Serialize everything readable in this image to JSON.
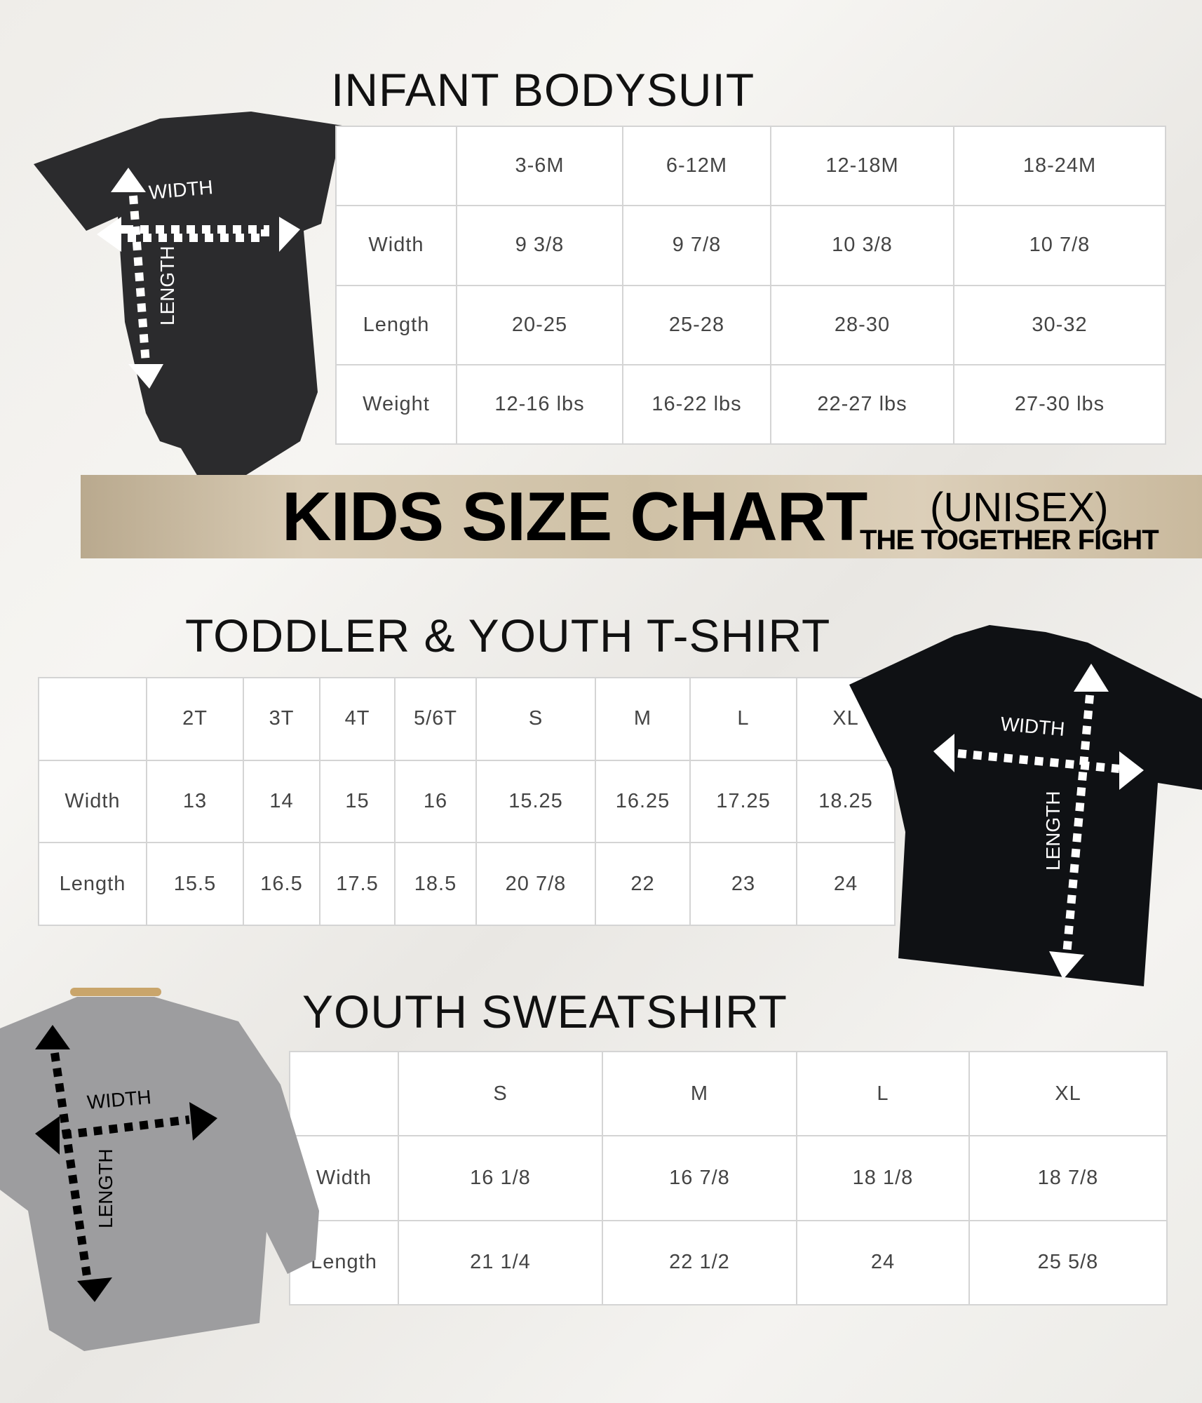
{
  "infant": {
    "title": "INFANT BODYSUIT",
    "headers": [
      "",
      "3-6M",
      "6-12M",
      "12-18M",
      "18-24M"
    ],
    "rows": [
      [
        "Width",
        "9 3/8",
        "9 7/8",
        "10 3/8",
        "10 7/8"
      ],
      [
        "Length",
        "20-25",
        "25-28",
        "28-30",
        "30-32"
      ],
      [
        "Weight",
        "12-16 lbs",
        "16-22 lbs",
        "22-27 lbs",
        "27-30 lbs"
      ]
    ],
    "garment_labels": {
      "width": "WIDTH",
      "length": "LENGTH"
    },
    "garment_color": "#2b2b2d"
  },
  "banner": {
    "title": "KIDS SIZE CHART",
    "subtitle": "(UNISEX)",
    "brand": "THE TOGETHER FIGHT"
  },
  "toddler": {
    "title": "TODDLER & YOUTH T-SHIRT",
    "headers": [
      "",
      "2T",
      "3T",
      "4T",
      "5/6T",
      "S",
      "M",
      "L",
      "XL"
    ],
    "rows": [
      [
        "Width",
        "13",
        "14",
        "15",
        "16",
        "15.25",
        "16.25",
        "17.25",
        "18.25"
      ],
      [
        "Length",
        "15.5",
        "16.5",
        "17.5",
        "18.5",
        "20 7/8",
        "22",
        "23",
        "24"
      ]
    ],
    "garment_labels": {
      "width": "WIDTH",
      "length": "LENGTH"
    },
    "garment_color": "#0f1114"
  },
  "sweatshirt": {
    "title": "YOUTH SWEATSHIRT",
    "headers": [
      "",
      "S",
      "M",
      "L",
      "XL"
    ],
    "rows": [
      [
        "Width",
        "16 1/8",
        "16 7/8",
        "18 1/8",
        "18 7/8"
      ],
      [
        "Length",
        "21 1/4",
        "22 1/2",
        "24",
        "25 5/8"
      ]
    ],
    "garment_labels": {
      "width": "WIDTH",
      "length": "LENGTH"
    },
    "garment_color": "#9d9d9f"
  }
}
